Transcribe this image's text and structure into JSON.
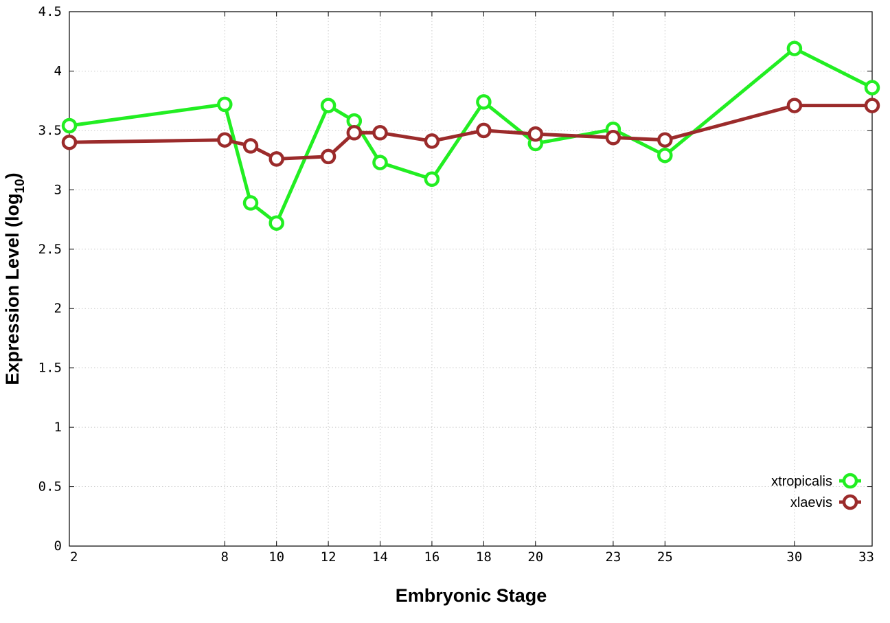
{
  "chart_data": {
    "type": "line",
    "xlabel": "Embryonic Stage",
    "ylabel_main": "Expression Level (log",
    "ylabel_sub": "10",
    "ylabel_close": ")",
    "x": [
      2,
      8,
      9,
      10,
      12,
      13,
      14,
      16,
      18,
      20,
      23,
      25,
      30,
      33
    ],
    "xticks": [
      2,
      8,
      10,
      12,
      14,
      16,
      18,
      20,
      23,
      25,
      30,
      33
    ],
    "xlim": [
      2,
      33
    ],
    "ylim": [
      0,
      4.5
    ],
    "yticks": [
      "0",
      "0.5",
      "1",
      "1.5",
      "2",
      "2.5",
      "3",
      "3.5",
      "4",
      "4.5"
    ],
    "grid": true,
    "legend_position": "bottom-right",
    "series": [
      {
        "name": "xtropicalis",
        "color": "#22ee22",
        "values": [
          3.54,
          3.72,
          2.89,
          2.72,
          3.71,
          3.58,
          3.23,
          3.09,
          3.74,
          3.39,
          3.51,
          3.29,
          4.19,
          3.86
        ]
      },
      {
        "name": "xlaevis",
        "color": "#9b2b2b",
        "values": [
          3.4,
          3.42,
          3.37,
          3.26,
          3.28,
          3.48,
          3.48,
          3.41,
          3.5,
          3.47,
          3.44,
          3.42,
          3.71,
          3.71
        ]
      }
    ]
  }
}
